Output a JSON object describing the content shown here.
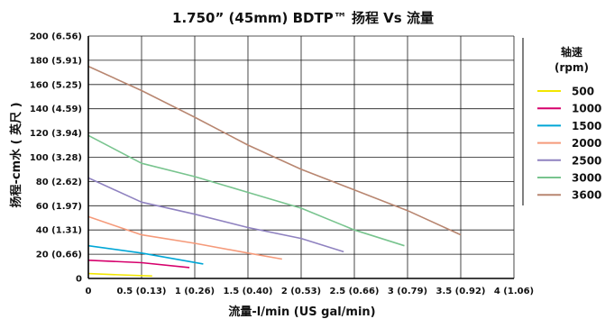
{
  "chart_data": {
    "type": "line",
    "title": "1.750”  (45mm) BDTP™ 扬程 Vs 流量",
    "xlabel": "流量-l/min (US gal/min)",
    "ylabel": "扬程-cm水 ( 英尺 )",
    "xlim": [
      0,
      4
    ],
    "ylim": [
      0,
      200
    ],
    "grid": true,
    "legend_position": "right",
    "legend_title": [
      "轴速",
      "(rpm)"
    ],
    "x_ticks": [
      0,
      0.5,
      1,
      1.5,
      2,
      2.5,
      3,
      3.5,
      4
    ],
    "x_tick_labels": [
      "0",
      "0.5 (0.13)",
      "1 (0.26)",
      "1.5 (0.40)",
      "2 (0.53)",
      "2.5 (0.66)",
      "3 (0.79)",
      "3.5 (0.92)",
      "4 (1.06)"
    ],
    "y_ticks": [
      0,
      20,
      40,
      60,
      80,
      100,
      120,
      140,
      160,
      180,
      200
    ],
    "y_tick_labels": [
      "0",
      "20 (0.66)",
      "40 (1.31)",
      "60 (1.97)",
      "80 (2.62)",
      "100 (3.28)",
      "120 (3.94)",
      "140 (4.59)",
      "160 (5.25)",
      "180 (5.91)",
      "200 (6.56)"
    ],
    "series": [
      {
        "name": "500",
        "color": "#f2e600",
        "points": [
          [
            0,
            4
          ],
          [
            0.3,
            3
          ],
          [
            0.6,
            2
          ]
        ]
      },
      {
        "name": "1000",
        "color": "#d6006c",
        "points": [
          [
            0,
            15
          ],
          [
            0.5,
            13
          ],
          [
            0.95,
            9
          ]
        ]
      },
      {
        "name": "1500",
        "color": "#00a6d6",
        "points": [
          [
            0,
            27
          ],
          [
            0.5,
            21
          ],
          [
            1.08,
            12
          ]
        ]
      },
      {
        "name": "2000",
        "color": "#f59a7a",
        "points": [
          [
            0,
            51
          ],
          [
            0.5,
            36
          ],
          [
            1.0,
            29
          ],
          [
            1.5,
            21
          ],
          [
            1.82,
            16
          ]
        ]
      },
      {
        "name": "2500",
        "color": "#8f82c0",
        "points": [
          [
            0,
            83
          ],
          [
            0.5,
            63
          ],
          [
            1.0,
            53
          ],
          [
            1.5,
            42
          ],
          [
            2.0,
            33
          ],
          [
            2.4,
            22
          ]
        ]
      },
      {
        "name": "3000",
        "color": "#78c48e",
        "points": [
          [
            0,
            118
          ],
          [
            0.5,
            95
          ],
          [
            1.0,
            84
          ],
          [
            1.5,
            71
          ],
          [
            2.0,
            58
          ],
          [
            2.5,
            40
          ],
          [
            2.97,
            27
          ]
        ]
      },
      {
        "name": "3600",
        "color": "#b88670",
        "points": [
          [
            0,
            175
          ],
          [
            0.5,
            155
          ],
          [
            1.0,
            133
          ],
          [
            1.5,
            110
          ],
          [
            2.0,
            90
          ],
          [
            2.5,
            73
          ],
          [
            3.0,
            56
          ],
          [
            3.5,
            36
          ]
        ]
      }
    ]
  }
}
